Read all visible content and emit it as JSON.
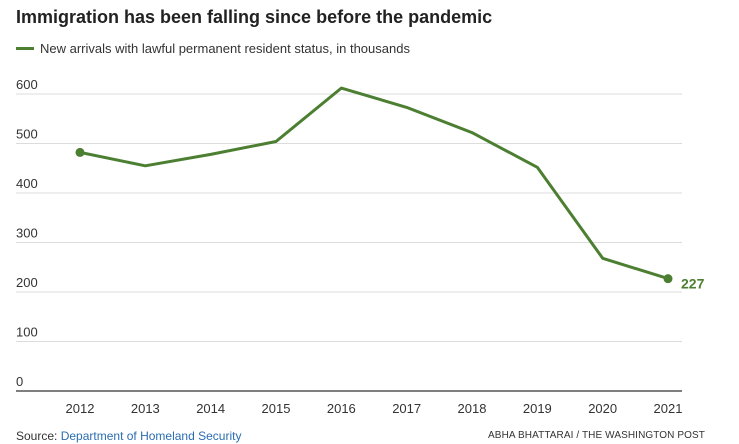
{
  "colors": {
    "series": "#4c7f31",
    "grid": "#dcdcdc",
    "axis": "#333333"
  },
  "chart_data": {
    "type": "line",
    "title": "Immigration has been falling since before the pandemic",
    "xlabel": "",
    "ylabel": "",
    "ylim": [
      0,
      600
    ],
    "yticks": [
      "0",
      "100",
      "200",
      "300",
      "400",
      "500",
      "600"
    ],
    "grid": true,
    "legend": "top-left",
    "series": [
      {
        "name": "New arrivals with lawful permanent resident status, in thousands",
        "x": [
          "2012",
          "2013",
          "2014",
          "2015",
          "2016",
          "2017",
          "2018",
          "2019",
          "2020",
          "2021"
        ],
        "values": [
          482,
          455,
          478,
          504,
          612,
          573,
          522,
          452,
          268,
          227
        ]
      }
    ],
    "annotations": [
      {
        "x": "2021",
        "label": "227"
      }
    ]
  },
  "footer": {
    "source_prefix": "Source: ",
    "source_link": "Department of Homeland Security",
    "credit": "ABHA BHATTARAI / THE WASHINGTON POST"
  }
}
